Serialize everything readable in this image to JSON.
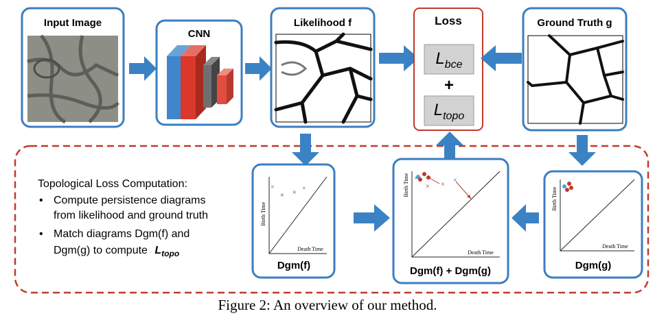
{
  "pipeline": {
    "input": {
      "title": "Input Image"
    },
    "cnn": {
      "title": "CNN"
    },
    "likelihood": {
      "title": "Likelihood f"
    },
    "loss": {
      "title": "Loss",
      "bce": {
        "symbol": "L",
        "subscript": "bce"
      },
      "plus": "+",
      "topo": {
        "symbol": "L",
        "subscript": "topo"
      }
    },
    "ground_truth": {
      "title": "Ground Truth g"
    }
  },
  "topological": {
    "title": "Topological Loss Computation:",
    "bullets": [
      {
        "lines": [
          "Compute persistence diagrams",
          "from likelihood and ground truth"
        ]
      },
      {
        "lines": [
          "Match diagrams Dgm(f) and",
          "Dgm(g)  to compute"
        ],
        "term": {
          "symbol": "L",
          "subscript": "topo"
        }
      }
    ]
  },
  "diagrams": [
    {
      "label": "Dgm(f)",
      "y_axis": "Birth Time",
      "x_axis": "Death Time"
    },
    {
      "label": "Dgm(f) + Dgm(g)",
      "y_axis": "Birth Time",
      "x_axis": "Death Time"
    },
    {
      "label": "Dgm(g)",
      "y_axis": "Birth Time",
      "x_axis": "Death Time"
    }
  ],
  "caption": "Figure 2: An overview of our method."
}
